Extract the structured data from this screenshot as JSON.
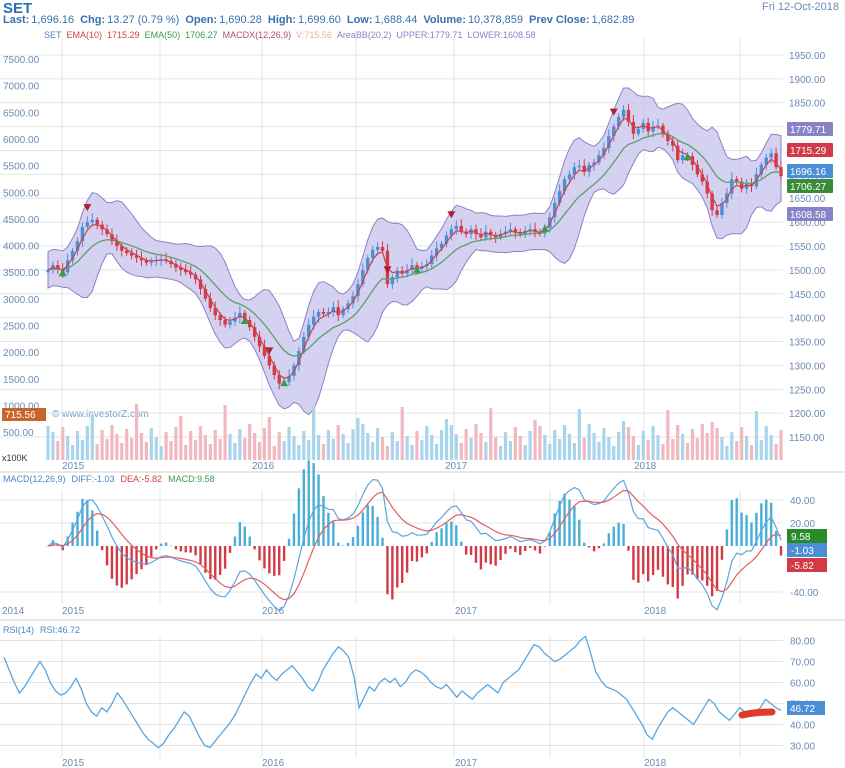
{
  "header": {
    "symbol": "SET",
    "date": "Fri 12-Oct-2018",
    "quote": [
      {
        "label": "Last:",
        "value": "1,696.16"
      },
      {
        "label": "Chg:",
        "value": "13.27 (0.79 %)"
      },
      {
        "label": "Open:",
        "value": "1,690.28"
      },
      {
        "label": "High:",
        "value": "1,699.60"
      },
      {
        "label": "Low:",
        "value": "1,688.44"
      },
      {
        "label": "Volume:",
        "value": "10,378,859"
      },
      {
        "label": "Prev Close:",
        "value": "1,682.89"
      }
    ]
  },
  "legend": [
    {
      "text": "SET",
      "color": "#4a86c5"
    },
    {
      "text": "EMA(10)",
      "color": "#d0404a"
    },
    {
      "text": "1715.29",
      "color": "#d0404a"
    },
    {
      "text": "EMA(50)",
      "color": "#3c9a4c"
    },
    {
      "text": "1706.27",
      "color": "#3c9a4c"
    },
    {
      "text": "MACDX(12,26,9)",
      "color": "#b5487c"
    },
    {
      "text": "V:715.56",
      "color": "#e8b48c"
    },
    {
      "text": "AreaBB(20,2)",
      "color": "#8a82c8"
    },
    {
      "text": "UPPER:1779.71",
      "color": "#8a82c8"
    },
    {
      "text": "LOWER:1608.58",
      "color": "#8a82c8"
    }
  ],
  "watermark": "© www.investorZ.com",
  "macd_legend": [
    {
      "text": "MACD(12,26,9)",
      "color": "#4a86c5"
    },
    {
      "text": "DIFF:-1.03",
      "color": "#4a86c5"
    },
    {
      "text": "DEA:-5.82",
      "color": "#d0404a"
    },
    {
      "text": "MACD:9.58",
      "color": "#3c9a4c"
    }
  ],
  "rsi_legend": [
    {
      "text": "RSI(14)"
    },
    {
      "text": "RSI:46.72"
    }
  ],
  "colors": {
    "up": "#4a8fd6",
    "down": "#d23b45",
    "ema10": "#d0404a",
    "ema50": "#5aa06a",
    "band_fill": "#c9c6ee",
    "band_line": "#8a82c8",
    "vol_up": "#a8d4ec",
    "vol_down": "#f2b8c0",
    "macd_pos": "#4aaed8",
    "macd_neg": "#d23b45",
    "diff_line": "#5aa6e0",
    "dea_line": "#e06060",
    "rsi_line": "#5aa6e0",
    "grid": "#e4e4e4",
    "axis_text": "#6a8bb3"
  },
  "chart_data": [
    {
      "type": "candlestick",
      "name": "price",
      "y_right": {
        "range": [
          1125,
          1975
        ],
        "ticks": [
          "1950.00",
          "1900.00",
          "1850.00",
          "1800.00",
          "1750.00",
          "1700.00",
          "1650.00",
          "1600.00",
          "1550.00",
          "1500.00",
          "1450.00",
          "1400.00",
          "1350.00",
          "1300.00",
          "1250.00",
          "1200.00",
          "1150.00"
        ]
      },
      "y_left_volume_x100k": {
        "ticks": [
          "7500.00",
          "7000.00",
          "6500.00",
          "6000.00",
          "5500.00",
          "5000.00",
          "4500.00",
          "4000.00",
          "3500.00",
          "3000.00",
          "2500.00",
          "2000.00",
          "1500.00",
          "1000.00",
          "500.00"
        ],
        "unit": "x100K"
      },
      "x_labels": [
        "2015",
        "2016",
        "2017",
        "2018"
      ],
      "close_weekly": [
        1500,
        1510,
        1502,
        1495,
        1520,
        1540,
        1560,
        1590,
        1600,
        1605,
        1595,
        1585,
        1575,
        1560,
        1550,
        1540,
        1535,
        1530,
        1525,
        1520,
        1515,
        1518,
        1520,
        1522,
        1519,
        1512,
        1505,
        1500,
        1495,
        1490,
        1480,
        1460,
        1440,
        1420,
        1405,
        1395,
        1385,
        1392,
        1400,
        1410,
        1395,
        1380,
        1360,
        1340,
        1320,
        1300,
        1280,
        1262,
        1265,
        1278,
        1300,
        1330,
        1360,
        1385,
        1402,
        1412,
        1408,
        1412,
        1422,
        1405,
        1418,
        1430,
        1445,
        1470,
        1500,
        1525,
        1542,
        1548,
        1540,
        1470,
        1485,
        1498,
        1492,
        1500,
        1510,
        1502,
        1508,
        1512,
        1530,
        1545,
        1555,
        1572,
        1585,
        1592,
        1580,
        1575,
        1585,
        1575,
        1568,
        1580,
        1572,
        1568,
        1575,
        1580,
        1585,
        1578,
        1575,
        1582,
        1585,
        1580,
        1576,
        1588,
        1610,
        1640,
        1665,
        1690,
        1700,
        1715,
        1718,
        1705,
        1720,
        1725,
        1740,
        1755,
        1780,
        1800,
        1820,
        1835,
        1810,
        1785,
        1795,
        1808,
        1790,
        1800,
        1802,
        1785,
        1770,
        1760,
        1730,
        1740,
        1738,
        1720,
        1700,
        1685,
        1660,
        1625,
        1615,
        1640,
        1660,
        1690,
        1685,
        1670,
        1680,
        1675,
        1700,
        1720,
        1735,
        1744,
        1715,
        1696
      ],
      "ema10": {
        "last": 1715.29
      },
      "ema50": {
        "last": 1706.27
      },
      "bollinger": {
        "period": 20,
        "k": 2,
        "upper_last": 1779.71,
        "lower_last": 1608.58
      },
      "price_tags": [
        "1779.71",
        "1715.29",
        "1696.16",
        "1706.27",
        "1608.58"
      ],
      "volume_tag": "715.56",
      "buy_signals_idx": [
        3,
        40,
        48,
        75,
        101,
        130
      ],
      "sell_signals_idx": [
        8,
        45,
        69,
        82,
        115
      ]
    },
    {
      "type": "bar+line",
      "name": "MACD(12,26,9)",
      "y_ticks": [
        "40.00",
        "20.00",
        "-40.00"
      ],
      "x_labels": [
        "2014",
        "2015",
        "2016",
        "2017",
        "2018"
      ],
      "diff_last": -1.03,
      "dea_last": -5.82,
      "macd_last": 9.58,
      "tags": [
        "9.58",
        "-1.03",
        "-5.82"
      ]
    },
    {
      "type": "line",
      "name": "RSI(14)",
      "y_ticks": [
        "80.00",
        "70.00",
        "60.00",
        "50.00",
        "40.00",
        "30.00"
      ],
      "y_range": [
        25,
        85
      ],
      "x_labels": [
        "2015",
        "2016",
        "2017",
        "2018"
      ],
      "rsi": [
        72,
        66,
        60,
        55,
        58,
        62,
        66,
        70,
        66,
        60,
        56,
        54,
        55,
        58,
        62,
        57,
        50,
        46,
        44,
        48,
        46,
        50,
        55,
        52,
        48,
        44,
        40,
        36,
        33,
        31,
        29,
        31,
        35,
        38,
        42,
        46,
        44,
        39,
        34,
        30,
        29,
        32,
        35,
        38,
        41,
        45,
        50,
        55,
        60,
        64,
        62,
        66,
        63,
        61,
        64,
        66,
        68,
        65,
        62,
        58,
        56,
        60,
        66,
        70,
        74,
        77,
        75,
        72,
        63,
        48,
        53,
        58,
        56,
        60,
        62,
        60,
        62,
        58,
        60,
        64,
        66,
        65,
        63,
        60,
        58,
        57,
        59,
        56,
        53,
        56,
        54,
        52,
        55,
        57,
        59,
        57,
        55,
        60,
        62,
        64,
        66,
        70,
        74,
        78,
        77,
        74,
        72,
        70,
        71,
        73,
        75,
        77,
        80,
        82,
        74,
        65,
        61,
        58,
        57,
        56,
        54,
        52,
        48,
        44,
        40,
        35,
        33,
        38,
        42,
        46,
        48,
        46,
        44,
        42,
        40,
        44,
        48,
        52,
        50,
        46,
        44,
        42,
        45,
        48,
        46,
        44,
        46,
        48,
        52,
        50,
        48,
        46.72
      ],
      "tag": "46.72"
    }
  ]
}
